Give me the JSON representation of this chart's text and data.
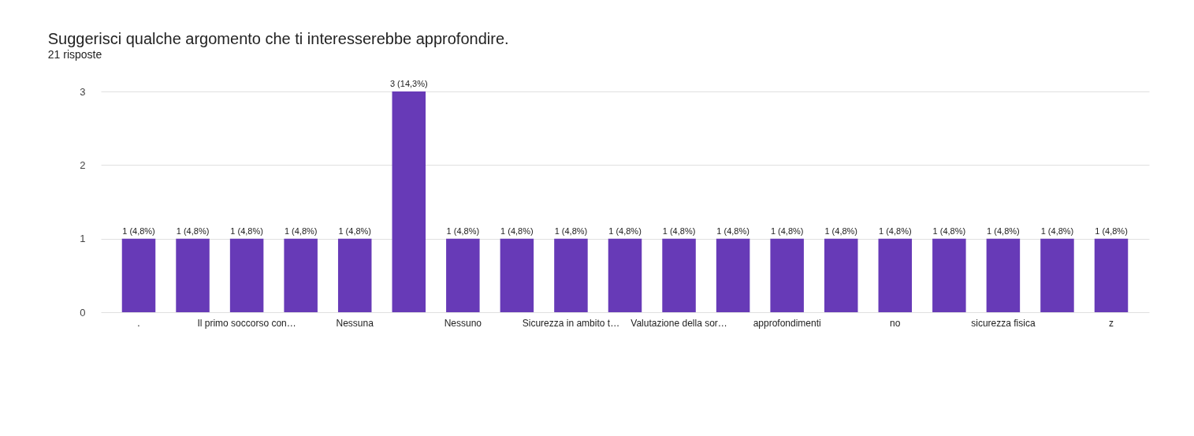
{
  "chart_data": {
    "type": "bar",
    "title": "Suggerisci qualche argomento che ti interesserebbe approfondire.",
    "subtitle": "21 risposte",
    "categories": [
      ".",
      null,
      "Il primo soccorso con…",
      null,
      "Nessuna",
      null,
      "Nessuno",
      null,
      "Sicurezza in ambito t…",
      null,
      "Valutazione della sor…",
      null,
      "approfondimenti",
      null,
      "no",
      null,
      "sicurezza fisica",
      null,
      "z"
    ],
    "values": [
      1,
      1,
      1,
      1,
      1,
      3,
      1,
      1,
      1,
      1,
      1,
      1,
      1,
      1,
      1,
      1,
      1,
      1,
      1
    ],
    "value_labels": [
      "1 (4,8%)",
      "1 (4,8%)",
      "1 (4,8%)",
      "1 (4,8%)",
      "1 (4,8%)",
      "3 (14,3%)",
      "1 (4,8%)",
      "1 (4,8%)",
      "1 (4,8%)",
      "1 (4,8%)",
      "1 (4,8%)",
      "1 (4,8%)",
      "1 (4,8%)",
      "1 (4,8%)",
      "1 (4,8%)",
      "1 (4,8%)",
      "1 (4,8%)",
      "1 (4,8%)",
      "1 (4,8%)"
    ],
    "color": "#673ab7",
    "ylim": [
      0,
      3
    ],
    "yticks": [
      0,
      1,
      2,
      3
    ],
    "grid": "y"
  }
}
